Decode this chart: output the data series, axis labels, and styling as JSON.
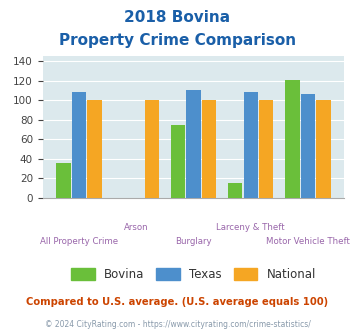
{
  "title_line1": "2018 Bovina",
  "title_line2": "Property Crime Comparison",
  "categories": [
    "All Property Crime",
    "Arson",
    "Burglary",
    "Larceny & Theft",
    "Motor Vehicle Theft"
  ],
  "bovina": [
    36,
    0,
    75,
    15,
    121
  ],
  "texas": [
    108,
    0,
    110,
    108,
    106
  ],
  "national": [
    100,
    100,
    100,
    100,
    100
  ],
  "bovina_color": "#6abf3a",
  "texas_color": "#4d8fcc",
  "national_color": "#f5a623",
  "bg_color": "#dce9ed",
  "ylim": [
    0,
    145
  ],
  "yticks": [
    0,
    20,
    40,
    60,
    80,
    100,
    120,
    140
  ],
  "subtitle": "Compared to U.S. average. (U.S. average equals 100)",
  "footer": "© 2024 CityRating.com - https://www.cityrating.com/crime-statistics/",
  "legend_labels": [
    "Bovina",
    "Texas",
    "National"
  ],
  "title_color": "#1a5fa8",
  "subtitle_color": "#cc4400",
  "footer_color": "#8899aa",
  "label_color": "#9966aa",
  "top_labels": [
    "",
    "Arson",
    "",
    "Larceny & Theft",
    ""
  ],
  "bottom_labels": [
    "All Property Crime",
    "",
    "Burglary",
    "",
    "Motor Vehicle Theft"
  ]
}
